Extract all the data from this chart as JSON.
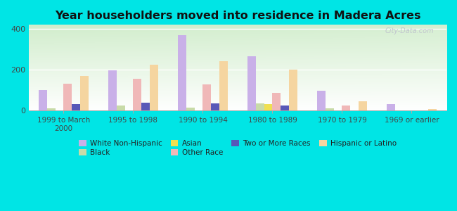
{
  "title": "Year householders moved into residence in Madera Acres",
  "categories": [
    "1999 to March\n2000",
    "1995 to 1998",
    "1990 to 1994",
    "1980 to 1989",
    "1970 to 1979",
    "1969 or earlier"
  ],
  "series_order": [
    "White Non-Hispanic",
    "Black",
    "Asian",
    "Other Race",
    "Two or More Races",
    "Hispanic or Latino"
  ],
  "series": {
    "White Non-Hispanic": [
      100,
      197,
      370,
      265,
      95,
      30
    ],
    "Black": [
      10,
      25,
      12,
      35,
      10,
      0
    ],
    "Asian": [
      0,
      0,
      0,
      30,
      0,
      0
    ],
    "Other Race": [
      130,
      155,
      128,
      85,
      25,
      0
    ],
    "Two or More Races": [
      30,
      38,
      35,
      25,
      0,
      0
    ],
    "Hispanic or Latino": [
      170,
      225,
      240,
      200,
      45,
      8
    ]
  },
  "colors": {
    "White Non-Hispanic": "#c9b0e8",
    "Black": "#c8dba8",
    "Asian": "#f0e050",
    "Other Race": "#f0b8b8",
    "Two or More Races": "#5858b8",
    "Hispanic or Latino": "#f5d5a0"
  },
  "legend_order": [
    "White Non-Hispanic",
    "Black",
    "Asian",
    "Other Race",
    "Two or More Races",
    "Hispanic or Latino"
  ],
  "ylim": [
    0,
    420
  ],
  "yticks": [
    0,
    200,
    400
  ],
  "bg_color": "#00e5e5",
  "watermark": "City-Data.com"
}
